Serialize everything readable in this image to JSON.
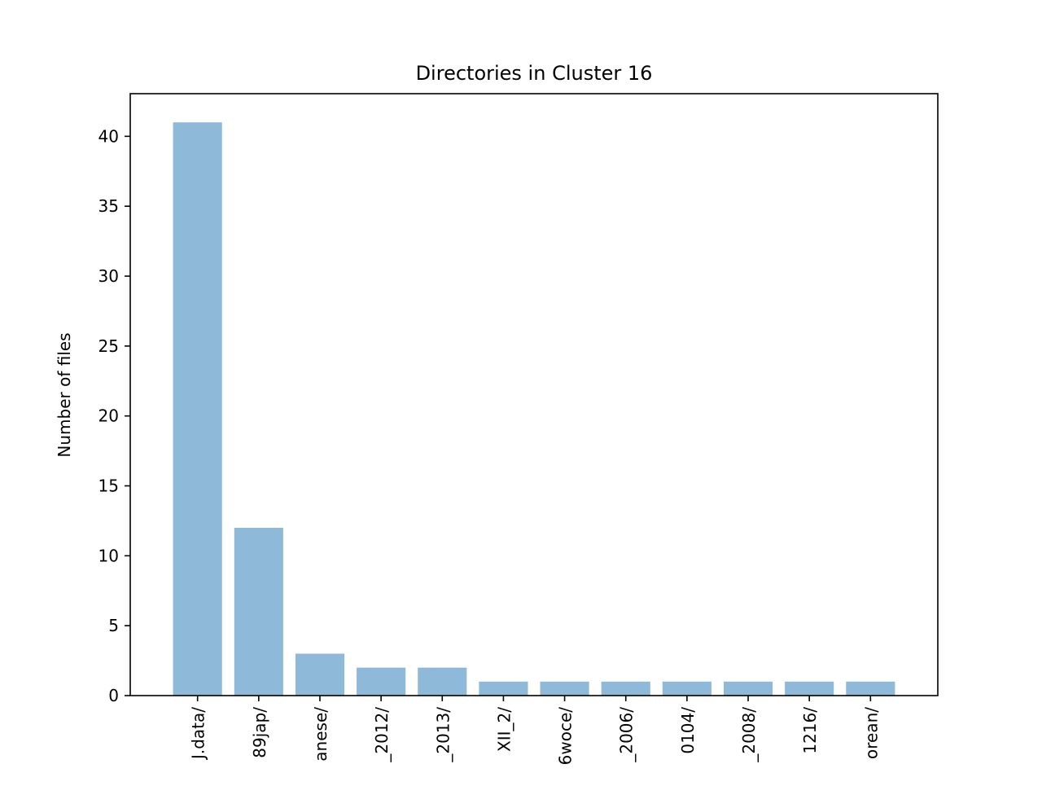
{
  "chart_data": {
    "type": "bar",
    "title": "Directories in Cluster 16",
    "xlabel": "",
    "ylabel": "Number of files",
    "categories": [
      "J.data/",
      "89jap/",
      "anese/",
      "_2012/",
      "_2013/",
      "XII_2/",
      "6woce/",
      "_2006/",
      "0104/",
      "_2008/",
      "1216/",
      "orean/"
    ],
    "values": [
      41,
      12,
      3,
      2,
      2,
      1,
      1,
      1,
      1,
      1,
      1,
      1
    ],
    "ylim": [
      0,
      43.05
    ],
    "yticks": [
      0,
      5,
      10,
      15,
      20,
      25,
      30,
      35,
      40
    ],
    "grid": false,
    "bar_color": "#8fb9d9",
    "axis_color": "#000000"
  }
}
